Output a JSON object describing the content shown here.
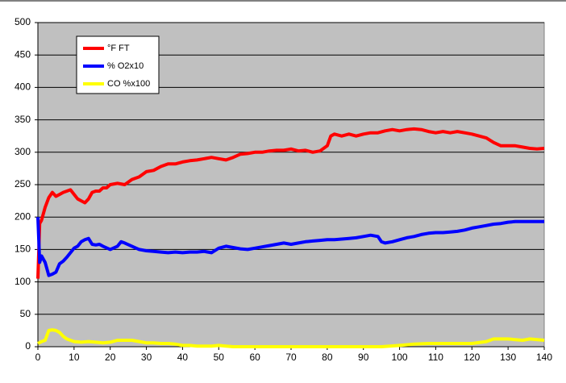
{
  "chart_data": {
    "type": "line",
    "xlim": [
      0,
      140
    ],
    "xticks": [
      0,
      10,
      20,
      30,
      40,
      50,
      60,
      70,
      80,
      90,
      100,
      110,
      120,
      130,
      140
    ],
    "ylim": [
      0,
      500
    ],
    "yticks": [
      0,
      50,
      100,
      150,
      200,
      250,
      300,
      350,
      400,
      450,
      500
    ],
    "grid": true,
    "legend": "top-left",
    "background": "#c0c0c0",
    "series": [
      {
        "name": "°F FT",
        "color": "#ff0000",
        "x": [
          0,
          0.5,
          1,
          2,
          3,
          4,
          5,
          6,
          7,
          8,
          9,
          10,
          11,
          12,
          13,
          14,
          15,
          16,
          17,
          18,
          19,
          20,
          22,
          24,
          26,
          28,
          30,
          32,
          34,
          36,
          38,
          40,
          42,
          44,
          46,
          48,
          50,
          52,
          54,
          56,
          58,
          60,
          62,
          64,
          66,
          68,
          70,
          72,
          74,
          76,
          78,
          80,
          81,
          82,
          84,
          86,
          88,
          90,
          92,
          94,
          96,
          98,
          100,
          102,
          104,
          106,
          108,
          110,
          112,
          114,
          116,
          118,
          120,
          122,
          124,
          126,
          128,
          130,
          132,
          134,
          136,
          138,
          140
        ],
        "values": [
          105,
          190,
          195,
          215,
          230,
          238,
          232,
          235,
          238,
          240,
          242,
          235,
          228,
          225,
          222,
          228,
          238,
          240,
          240,
          245,
          245,
          250,
          252,
          250,
          258,
          262,
          270,
          272,
          278,
          282,
          282,
          285,
          287,
          288,
          290,
          292,
          290,
          288,
          292,
          297,
          298,
          300,
          300,
          302,
          303,
          303,
          305,
          302,
          303,
          300,
          302,
          310,
          325,
          328,
          325,
          328,
          325,
          328,
          330,
          330,
          333,
          335,
          333,
          335,
          336,
          335,
          332,
          330,
          332,
          330,
          332,
          330,
          328,
          325,
          322,
          315,
          310,
          310,
          310,
          308,
          306,
          305,
          306
        ]
      },
      {
        "name": "% O2x10",
        "color": "#0000ff",
        "x": [
          0,
          0.5,
          1,
          2,
          3,
          4,
          5,
          6,
          7,
          8,
          9,
          10,
          11,
          12,
          13,
          14,
          15,
          16,
          17,
          18,
          20,
          22,
          23,
          24,
          26,
          28,
          30,
          32,
          34,
          36,
          38,
          40,
          42,
          44,
          46,
          48,
          50,
          52,
          54,
          56,
          58,
          60,
          62,
          64,
          66,
          68,
          70,
          72,
          74,
          76,
          78,
          80,
          82,
          84,
          86,
          88,
          90,
          92,
          94,
          95,
          96,
          98,
          100,
          102,
          104,
          106,
          108,
          110,
          112,
          114,
          116,
          118,
          120,
          122,
          124,
          126,
          128,
          130,
          132,
          134,
          136,
          138,
          140
        ],
        "values": [
          200,
          130,
          140,
          130,
          110,
          112,
          115,
          128,
          132,
          138,
          145,
          152,
          155,
          162,
          165,
          167,
          158,
          157,
          158,
          155,
          150,
          155,
          162,
          160,
          155,
          150,
          148,
          147,
          146,
          145,
          146,
          145,
          146,
          146,
          147,
          145,
          152,
          155,
          153,
          151,
          150,
          152,
          154,
          156,
          158,
          160,
          158,
          160,
          162,
          163,
          164,
          165,
          165,
          166,
          167,
          168,
          170,
          172,
          170,
          162,
          160,
          162,
          165,
          168,
          170,
          173,
          175,
          176,
          176,
          177,
          178,
          180,
          183,
          185,
          187,
          189,
          190,
          192,
          193,
          193,
          193,
          193,
          193
        ]
      },
      {
        "name": "CO %x100",
        "color": "#ffff00",
        "x": [
          0,
          1,
          2,
          3,
          4,
          5,
          6,
          7,
          8,
          10,
          12,
          14,
          16,
          18,
          20,
          22,
          24,
          26,
          28,
          30,
          32,
          34,
          36,
          38,
          40,
          42,
          44,
          46,
          48,
          50,
          52,
          54,
          56,
          60,
          70,
          80,
          90,
          95,
          100,
          104,
          108,
          112,
          116,
          120,
          124,
          126,
          130,
          134,
          136,
          140
        ],
        "values": [
          5,
          8,
          10,
          25,
          26,
          25,
          22,
          16,
          12,
          8,
          7,
          8,
          7,
          6,
          7,
          10,
          10,
          10,
          8,
          6,
          6,
          5,
          5,
          4,
          2,
          2,
          1,
          1,
          1,
          2,
          1,
          0,
          0,
          0,
          0,
          0,
          0,
          0,
          2,
          4,
          5,
          5,
          5,
          5,
          8,
          12,
          12,
          10,
          12,
          10
        ]
      }
    ]
  }
}
